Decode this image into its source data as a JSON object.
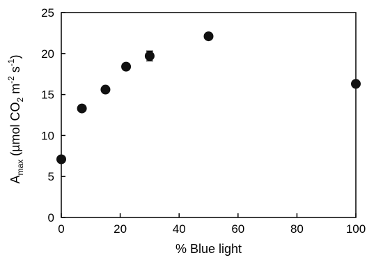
{
  "chart_data": {
    "type": "scatter",
    "title": "",
    "xlabel": "% Blue light",
    "ylabel": {
      "parts": [
        {
          "text": "A",
          "style": "normal"
        },
        {
          "text": "max",
          "style": "sub"
        },
        {
          "text": " (µmol CO",
          "style": "normal"
        },
        {
          "text": "2",
          "style": "sub"
        },
        {
          "text": " m",
          "style": "normal"
        },
        {
          "text": "-2",
          "style": "sup"
        },
        {
          "text": " s",
          "style": "normal"
        },
        {
          "text": "-1",
          "style": "sup"
        },
        {
          "text": ")",
          "style": "normal"
        }
      ]
    },
    "xlim": [
      0,
      100
    ],
    "ylim": [
      0,
      25
    ],
    "xticks": [
      0,
      20,
      40,
      60,
      80,
      100
    ],
    "yticks": [
      0,
      5,
      10,
      15,
      20,
      25
    ],
    "grid": false,
    "legend": "none",
    "marker_color": "#111111",
    "points": [
      {
        "x": 0,
        "y": 7.1,
        "err": 0.3
      },
      {
        "x": 7,
        "y": 13.3,
        "err": 0.3
      },
      {
        "x": 15,
        "y": 15.6,
        "err": 0.3
      },
      {
        "x": 22,
        "y": 18.4,
        "err": 0.4
      },
      {
        "x": 30,
        "y": 19.7,
        "err": 0.6
      },
      {
        "x": 50,
        "y": 22.1,
        "err": 0.3
      },
      {
        "x": 100,
        "y": 16.3,
        "err": 0.3
      }
    ]
  }
}
